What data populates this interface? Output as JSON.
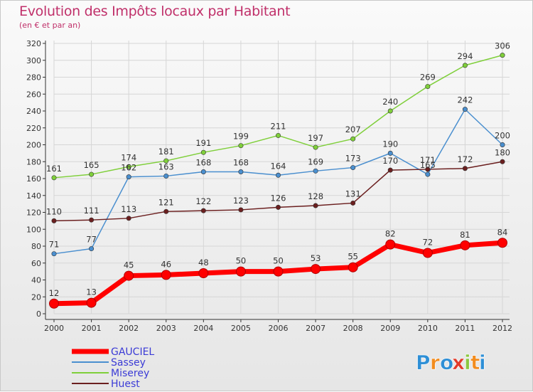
{
  "chart_data": {
    "type": "line",
    "title": "Evolution des Impôts locaux par Habitant",
    "subtitle": "(en € et par an)",
    "x": [
      "2000",
      "2001",
      "2002",
      "2003",
      "2004",
      "2005",
      "2006",
      "2007",
      "2008",
      "2009",
      "2010",
      "2011",
      "2012"
    ],
    "ylim": [
      0,
      320
    ],
    "yticks": [
      0,
      20,
      40,
      60,
      80,
      100,
      120,
      140,
      160,
      180,
      200,
      220,
      240,
      260,
      280,
      300,
      320
    ],
    "series": [
      {
        "name": "GAUCIEL",
        "color": "#ff0000",
        "values": [
          12,
          13,
          45,
          46,
          48,
          50,
          50,
          53,
          55,
          82,
          72,
          81,
          84
        ],
        "labels": [
          "12",
          "13",
          "45",
          "46",
          "48",
          "50",
          "50",
          "53",
          "55",
          "82",
          "72",
          "81",
          "84"
        ]
      },
      {
        "name": "Sassey",
        "color": "#4a8fcf",
        "values": [
          71,
          77,
          162,
          163,
          168,
          168,
          164,
          169,
          173,
          190,
          165,
          242,
          200
        ],
        "labels": [
          "71",
          "77",
          "162",
          "163",
          "168",
          "168",
          "164",
          "169",
          "173",
          "190",
          "165",
          "242",
          "200"
        ]
      },
      {
        "name": "Miserey",
        "color": "#7fcf3a",
        "values": [
          161,
          165,
          174,
          181,
          191,
          199,
          211,
          197,
          207,
          240,
          269,
          294,
          306
        ],
        "labels": [
          "161",
          "165",
          "174",
          "181",
          "191",
          "199",
          "211",
          "197",
          "207",
          "240",
          "269",
          "294",
          "306"
        ]
      },
      {
        "name": "Huest",
        "color": "#6b1f1f",
        "values": [
          110,
          111,
          113,
          121,
          122,
          123,
          126,
          128,
          131,
          170,
          171,
          172,
          180
        ],
        "labels": [
          "110",
          "111",
          "113",
          "121",
          "122",
          "123",
          "126",
          "128",
          "131",
          "170",
          "171",
          "172",
          "180"
        ]
      }
    ]
  },
  "brand": {
    "letters": [
      "P",
      "r",
      "o",
      "x",
      "i",
      "t",
      "i"
    ],
    "colors": [
      "#2e8fd6",
      "#f28c1e",
      "#2e8fd6",
      "#e23a2a",
      "#8bc63f",
      "#f28c1e",
      "#2e8fd6"
    ]
  }
}
